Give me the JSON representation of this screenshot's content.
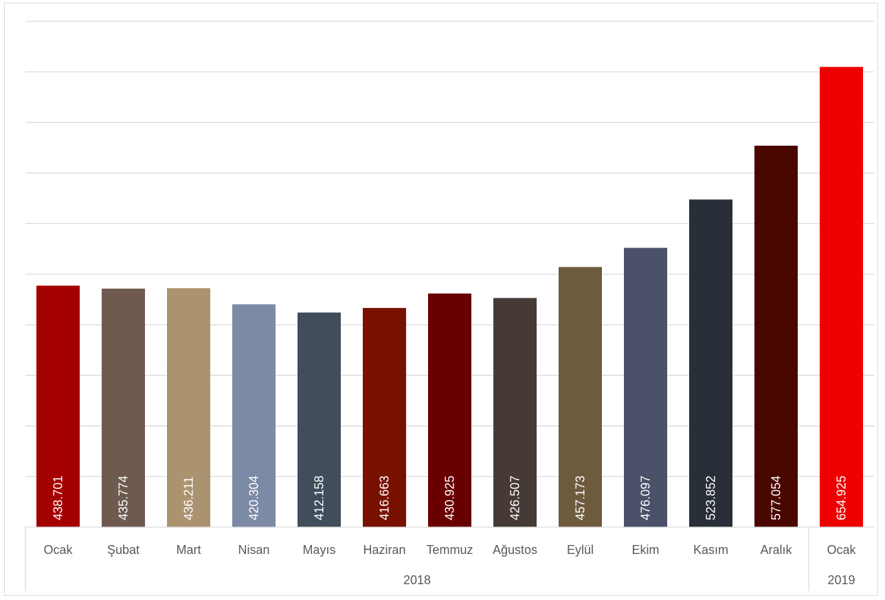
{
  "chart_data": {
    "type": "bar",
    "categories": [
      "Ocak",
      "Şubat",
      "Mart",
      "Nisan",
      "Mayıs",
      "Haziran",
      "Temmuz",
      "Ağustos",
      "Eylül",
      "Ekim",
      "Kasım",
      "Aralık",
      "Ocak"
    ],
    "groups": [
      {
        "label": "2018",
        "count": 12
      },
      {
        "label": "2019",
        "count": 1
      }
    ],
    "values": [
      438701,
      435774,
      436211,
      420304,
      412158,
      416663,
      430925,
      426507,
      457173,
      476097,
      523852,
      577054,
      654925
    ],
    "value_labels": [
      "438.701",
      "435.774",
      "436.211",
      "420.304",
      "412.158",
      "416.663",
      "430.925",
      "426.507",
      "457.173",
      "476.097",
      "523.852",
      "577.054",
      "654.925"
    ],
    "colors": [
      "#a50000",
      "#6e5a4f",
      "#ab9370",
      "#7d8aa5",
      "#414d5b",
      "#781100",
      "#690000",
      "#453a35",
      "#6e5b3d",
      "#4a5168",
      "#282f38",
      "#4a0700",
      "#ee0000"
    ],
    "ylim": [
      200000,
      700000
    ],
    "gridline_step": 50000,
    "grid": true,
    "title": "",
    "xlabel": "",
    "ylabel": ""
  }
}
